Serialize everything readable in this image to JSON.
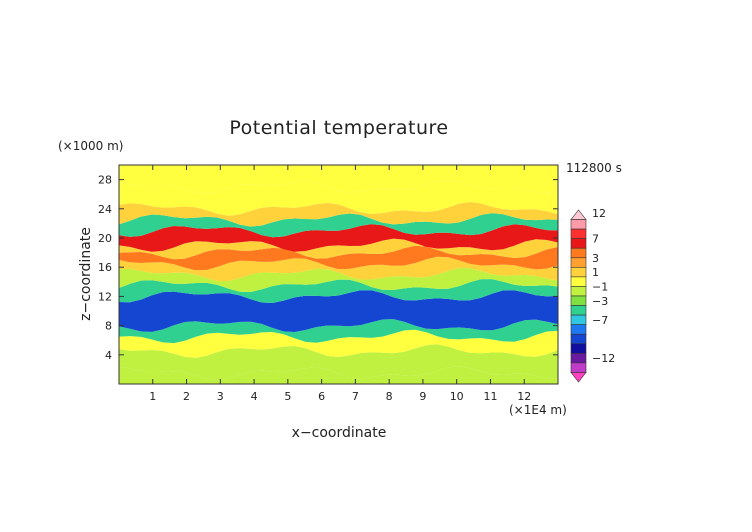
{
  "chart_data": {
    "type": "heatmap",
    "title": "Potential temperature",
    "time_label": "112800 s",
    "xlabel": "x−coordinate",
    "ylabel": "z−coordinate",
    "x_unit": "(×1E4 m)",
    "y_unit": "(×1000 m)",
    "x_ticks": [
      "1",
      "2",
      "3",
      "4",
      "5",
      "6",
      "7",
      "8",
      "9",
      "10",
      "11",
      "12"
    ],
    "y_ticks": [
      "4",
      "8",
      "12",
      "16",
      "20",
      "24",
      "28"
    ],
    "xlim": [
      0,
      13
    ],
    "ylim": [
      0,
      30
    ],
    "colorbar": {
      "labels": [
        "12",
        "7",
        "3",
        "1",
        "−1",
        "−3",
        "−7",
        "−12"
      ],
      "colors": [
        "#ffc8d2",
        "#ff9aa8",
        "#ff3030",
        "#e81818",
        "#ff7a1e",
        "#ffa030",
        "#ffd23c",
        "#ffff40",
        "#c0f040",
        "#80e040",
        "#30d090",
        "#30c8e0",
        "#1e78f0",
        "#1446d2",
        "#1010a0",
        "#6a1aa0",
        "#c03cc8",
        "#ff40c0"
      ],
      "bands": [
        {
          "value": 12,
          "label": "12"
        },
        {
          "value": 7,
          "label": "7"
        },
        {
          "value": 3,
          "label": "3"
        },
        {
          "value": 1,
          "label": "1"
        },
        {
          "value": -1,
          "label": "−1"
        },
        {
          "value": -3,
          "label": "−3"
        },
        {
          "value": -7,
          "label": "−7"
        },
        {
          "value": -12,
          "label": "−12"
        }
      ]
    },
    "layers": [
      {
        "z_from": 0,
        "z_to": 1.5,
        "anomaly": 0.0
      },
      {
        "z_from": 1.5,
        "z_to": 4.5,
        "anomaly": 0.3
      },
      {
        "z_from": 4.5,
        "z_to": 6.5,
        "anomaly": 0.6
      },
      {
        "z_from": 6.5,
        "z_to": 8.0,
        "anomaly": -1.5
      },
      {
        "z_from": 8.0,
        "z_to": 12.0,
        "anomaly": -3.5
      },
      {
        "z_from": 12.0,
        "z_to": 13.5,
        "anomaly": -1.8
      },
      {
        "z_from": 13.5,
        "z_to": 15.0,
        "anomaly": 0.2
      },
      {
        "z_from": 15.0,
        "z_to": 16.5,
        "anomaly": 1.5
      },
      {
        "z_from": 16.5,
        "z_to": 18.0,
        "anomaly": 3.5
      },
      {
        "z_from": 18.0,
        "z_to": 19.0,
        "anomaly": 2.0
      },
      {
        "z_from": 19.0,
        "z_to": 21.0,
        "anomaly": 4.5
      },
      {
        "z_from": 21.0,
        "z_to": 22.5,
        "anomaly": -1.2
      },
      {
        "z_from": 22.5,
        "z_to": 24.0,
        "anomaly": 1.8
      },
      {
        "z_from": 24.0,
        "z_to": 27.0,
        "anomaly": 0.6
      },
      {
        "z_from": 27.0,
        "z_to": 30.0,
        "anomaly": 0.4
      }
    ]
  }
}
